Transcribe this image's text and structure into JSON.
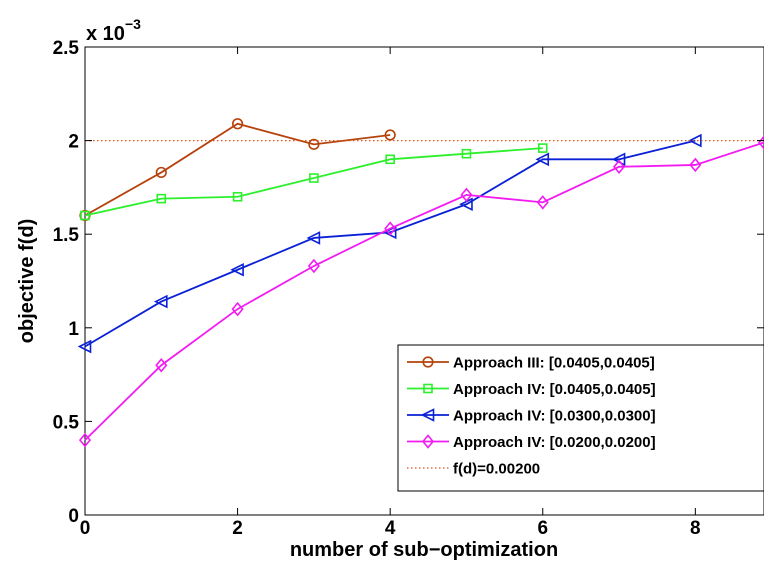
{
  "chart_data": {
    "type": "line",
    "xlabel": "number of sub−optimization",
    "ylabel": "objective f(d)",
    "y_exponent_label": "x 10",
    "y_exponent_power": "−3",
    "xlim": [
      0,
      8.9
    ],
    "ylim": [
      0,
      2.5
    ],
    "x_ticks": [
      0,
      2,
      4,
      6,
      8
    ],
    "x_tick_labels": [
      "0",
      "2",
      "4",
      "6",
      "8"
    ],
    "y_ticks": [
      0,
      0.5,
      1,
      1.5,
      2,
      2.5
    ],
    "y_tick_labels": [
      "0",
      "0.5",
      "1",
      "1.5",
      "2",
      "2.5"
    ],
    "grid": false,
    "legend_position": "lower-right",
    "series": [
      {
        "name": "Approach III: [0.0405,0.0405]",
        "color": "#b5420b",
        "marker": "circle",
        "x": [
          0,
          1,
          2,
          3,
          4
        ],
        "y": [
          1.6,
          1.83,
          2.09,
          1.98,
          2.03
        ]
      },
      {
        "name": "Approach IV: [0.0405,0.0405]",
        "color": "#2cf02c",
        "marker": "square",
        "x": [
          0,
          1,
          2,
          3,
          4,
          5,
          6
        ],
        "y": [
          1.6,
          1.69,
          1.7,
          1.8,
          1.9,
          1.93,
          1.96
        ]
      },
      {
        "name": "Approach IV: [0.0300,0.0300]",
        "color": "#0a21d6",
        "marker": "triangle-left",
        "x": [
          0,
          1,
          2,
          3,
          4,
          5,
          6,
          7,
          8
        ],
        "y": [
          0.9,
          1.14,
          1.31,
          1.48,
          1.51,
          1.66,
          1.9,
          1.9,
          2.0
        ]
      },
      {
        "name": "Approach IV: [0.0200,0.0200]",
        "color": "#f21cf2",
        "marker": "diamond",
        "x": [
          0,
          1,
          2,
          3,
          4,
          5,
          6,
          7,
          8,
          8.9
        ],
        "y": [
          0.4,
          0.8,
          1.1,
          1.33,
          1.53,
          1.71,
          1.67,
          1.86,
          1.87,
          1.99
        ]
      },
      {
        "name": "f(d)=0.00200",
        "color": "#e0521a",
        "marker": "none",
        "dotted": true,
        "x": [
          0,
          8.9
        ],
        "y": [
          2.0,
          2.0
        ]
      }
    ]
  }
}
